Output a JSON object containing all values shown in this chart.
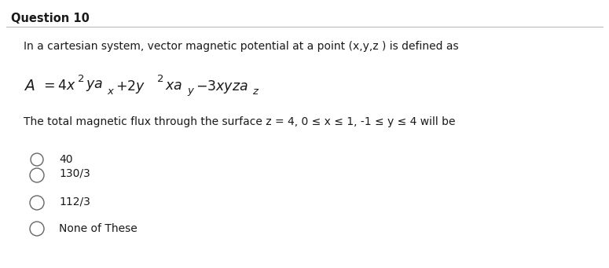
{
  "title": "Question 10",
  "bg_color": "#ffffff",
  "line_color": "#cccccc",
  "text_color": "#1a1a1a",
  "para1": "In a cartesian system, vector magnetic potential at a point (x,y,z ) is defined as",
  "para2": "The total magnetic flux through the surface z = 4, 0 ≤ x ≤ 1, -1 ≤ y ≤ 4 will be",
  "options": [
    "40",
    "130/3",
    "112/3",
    "None of These"
  ],
  "title_fontsize": 10.5,
  "body_fontsize": 10.0,
  "eq_fontsize": 12.5,
  "option_fontsize": 10.0
}
